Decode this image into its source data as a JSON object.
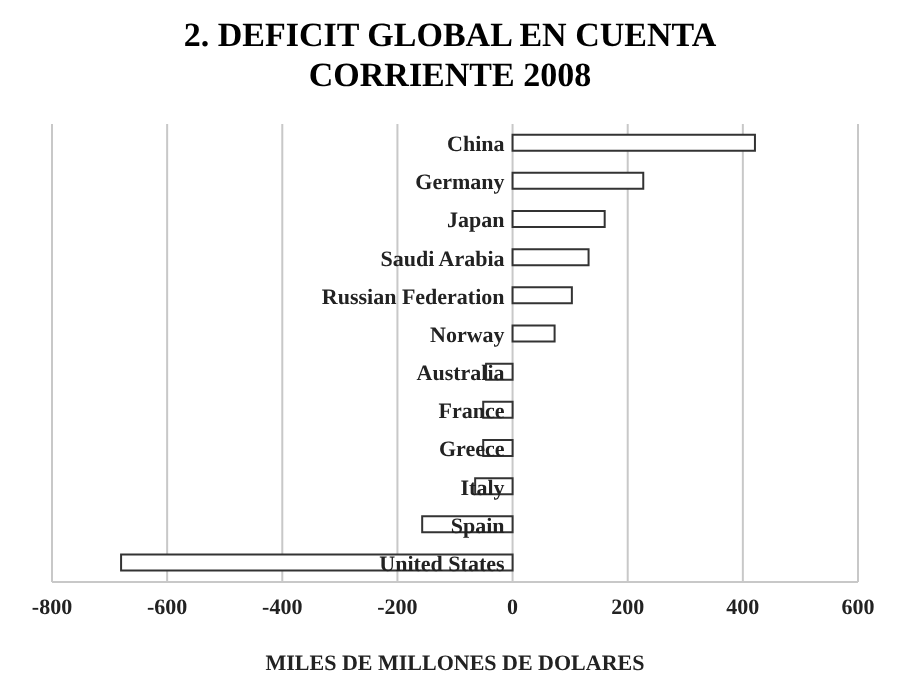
{
  "chart_data": {
    "type": "bar",
    "orientation": "horizontal",
    "title": "2. DEFICIT GLOBAL EN CUENTA CORRIENTE 2008",
    "xlabel": "MILES DE MILLONES DE DOLARES",
    "categories": [
      "China",
      "Germany",
      "Japan",
      "Saudi Arabia",
      "Russian Federation",
      "Norway",
      "Australia",
      "France",
      "Greece",
      "Italy",
      "Spain",
      "United States"
    ],
    "values": [
      421,
      227,
      160,
      132,
      103,
      73,
      -46,
      -51,
      -51,
      -65,
      -157,
      -680
    ],
    "color": "#ffffff",
    "xlim": [
      -800,
      600
    ],
    "xticks": [
      -800,
      -600,
      -400,
      -200,
      0,
      200,
      400,
      600
    ],
    "grid": "x",
    "legend": false
  }
}
